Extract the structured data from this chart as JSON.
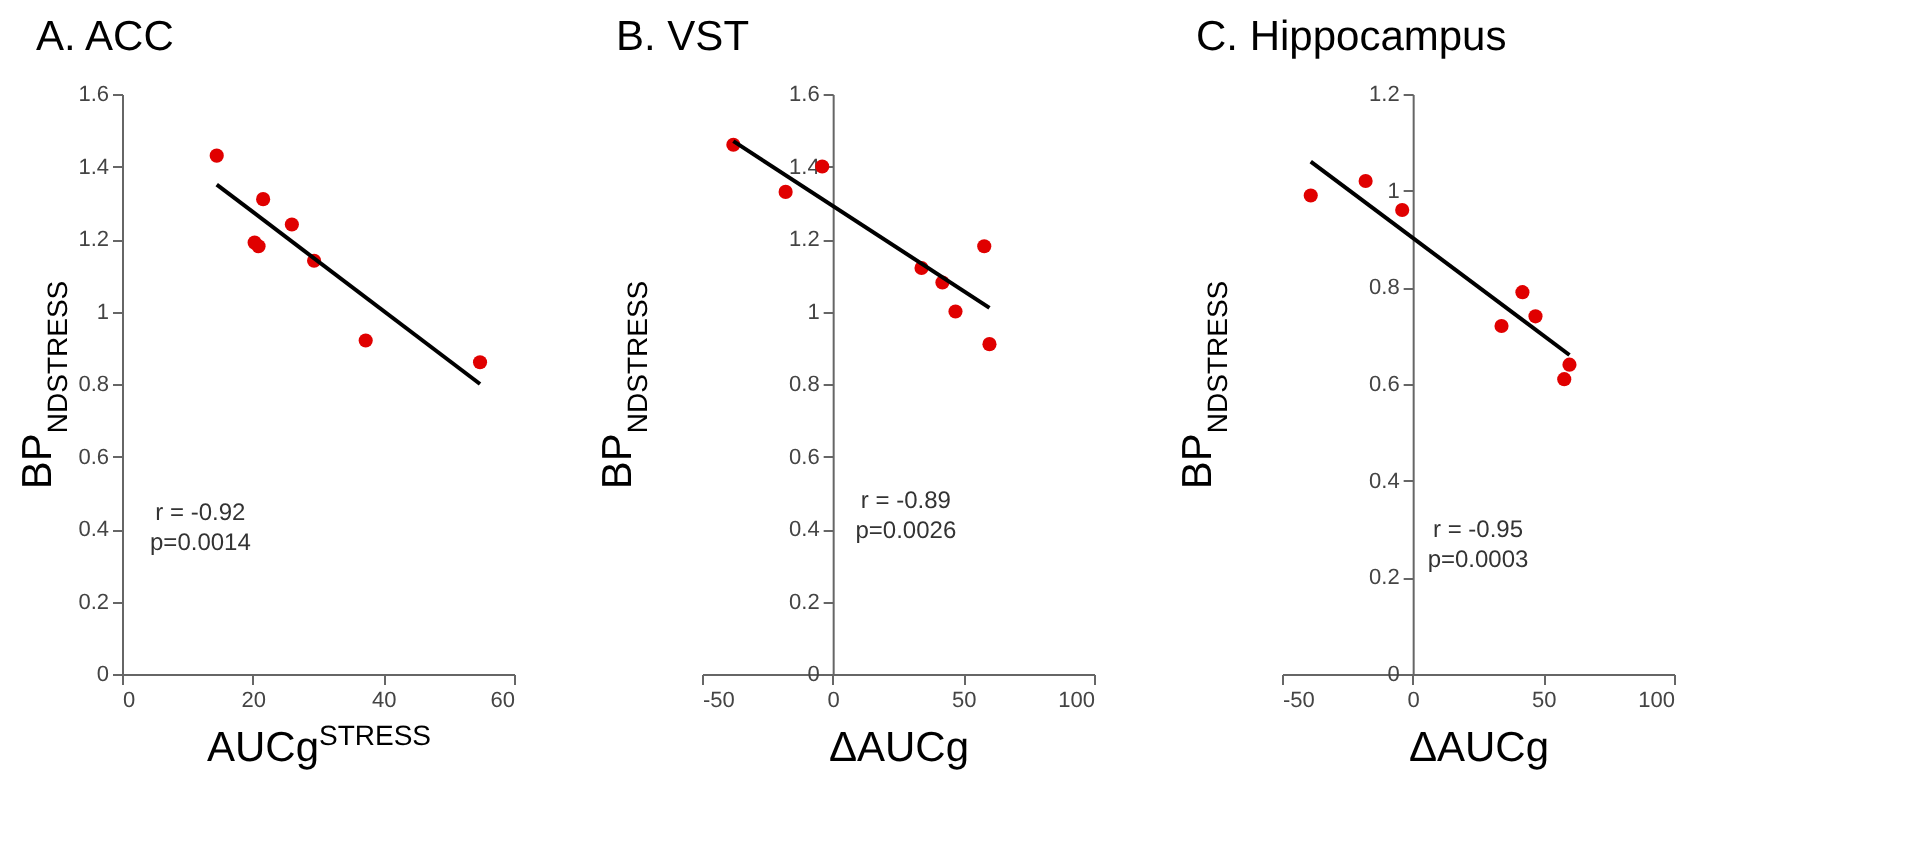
{
  "chart_data": [
    {
      "type": "scatter",
      "title": "A. ACC",
      "xlabel": "AUCg$^{STRESS}$",
      "ylabel": "BP$_{NDSTRESS}$",
      "xlim": [
        0,
        60
      ],
      "xticks": [
        0,
        20,
        40,
        60
      ],
      "ylim": [
        0,
        1.6
      ],
      "yticks": [
        0,
        0.2,
        0.4,
        0.6,
        0.8,
        1,
        1.2,
        1.4,
        1.6
      ],
      "grid": false,
      "legend": false,
      "marker": "circle",
      "annotations": [
        "r = -0.92",
        "p=0.0014"
      ],
      "series": [
        {
          "type": "scatter",
          "color": "#e00000",
          "x": [
            14.5,
            20.3,
            20.9,
            21.6,
            26,
            29.4,
            37.3,
            54.8
          ],
          "values": [
            1.43,
            1.19,
            1.18,
            1.31,
            1.24,
            1.14,
            0.92,
            0.86
          ]
        },
        {
          "type": "line",
          "marker": "none",
          "color": "#000000",
          "x": [
            14.5,
            54.8
          ],
          "values": [
            1.35,
            0.8
          ]
        }
      ]
    },
    {
      "type": "scatter",
      "title": "B. VST",
      "xlabel": "ΔAUCg",
      "ylabel": "BP$_{NDSTRESS}$",
      "xlim": [
        -50,
        100
      ],
      "xticks": [
        -50,
        0,
        50,
        100
      ],
      "ylim": [
        0,
        1.6
      ],
      "yticks": [
        0,
        0.2,
        0.4,
        0.6,
        0.8,
        1,
        1.2,
        1.4,
        1.6
      ],
      "grid": false,
      "legend": false,
      "marker": "circle",
      "annotations": [
        "r = -0.89",
        "p=0.0026"
      ],
      "series": [
        {
          "type": "scatter",
          "color": "#e00000",
          "x": [
            -38,
            -18,
            -4,
            34,
            42,
            47,
            58,
            60
          ],
          "values": [
            1.46,
            1.33,
            1.4,
            1.12,
            1.08,
            1.0,
            1.18,
            0.91
          ]
        },
        {
          "type": "line",
          "marker": "none",
          "color": "#000000",
          "x": [
            -38,
            60
          ],
          "values": [
            1.47,
            1.01
          ]
        }
      ]
    },
    {
      "type": "scatter",
      "title": "C. Hippocampus",
      "xlabel": "ΔAUCg",
      "ylabel": "BP$_{NDSTRESS}$",
      "xlim": [
        -50,
        100
      ],
      "xticks": [
        -50,
        0,
        50,
        100
      ],
      "ylim": [
        0,
        1.2
      ],
      "yticks": [
        0,
        0.2,
        0.4,
        0.6,
        0.8,
        1,
        1.2
      ],
      "grid": false,
      "legend": false,
      "marker": "circle",
      "annotations": [
        "r = -0.95",
        "p=0.0003"
      ],
      "series": [
        {
          "type": "scatter",
          "color": "#e00000",
          "x": [
            -39,
            -18,
            -4,
            34,
            42,
            47,
            58,
            60
          ],
          "values": [
            0.99,
            1.02,
            0.96,
            0.72,
            0.79,
            0.74,
            0.61,
            0.64
          ]
        },
        {
          "type": "line",
          "marker": "none",
          "color": "#000000",
          "x": [
            -39,
            60
          ],
          "values": [
            1.06,
            0.66
          ]
        }
      ]
    }
  ]
}
